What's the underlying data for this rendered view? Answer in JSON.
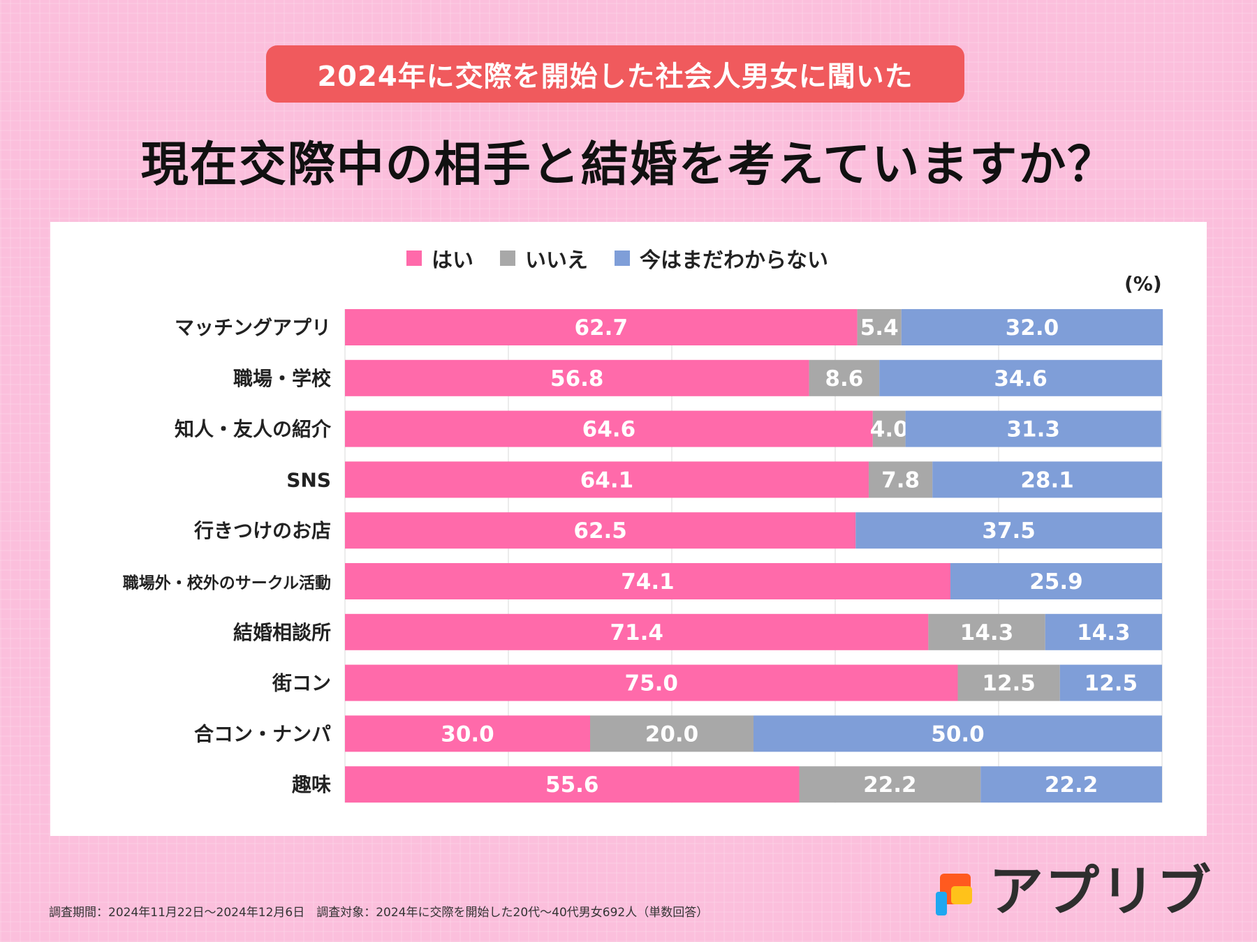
{
  "header": {
    "banner": "2024年に交際を開始した社会人男女に聞いた",
    "title": "現在交際中の相手と結婚を考えていますか？"
  },
  "legend": {
    "items": [
      {
        "label": "はい",
        "color": "#ff6aaa"
      },
      {
        "label": "いいえ",
        "color": "#a8a8a8"
      },
      {
        "label": "今はまだわからない",
        "color": "#7f9ed8"
      }
    ]
  },
  "unit_label": "(%)",
  "chart_data": {
    "type": "bar",
    "orientation": "horizontal",
    "stacked": true,
    "xlim": [
      0,
      100
    ],
    "grid": true,
    "legend_position": "top",
    "categories": [
      "マッチングアプリ",
      "職場・学校",
      "知人・友人の紹介",
      "SNS",
      "行きつけのお店",
      "職場外・校外のサークル活動",
      "結婚相談所",
      "街コン",
      "合コン・ナンパ",
      "趣味"
    ],
    "series": [
      {
        "name": "はい",
        "color": "#ff6aaa",
        "values": [
          62.7,
          56.8,
          64.6,
          64.1,
          62.5,
          74.1,
          71.4,
          75.0,
          30.0,
          55.6
        ]
      },
      {
        "name": "いいえ",
        "color": "#a8a8a8",
        "values": [
          5.4,
          8.6,
          4.0,
          7.8,
          0,
          0,
          14.3,
          12.5,
          20.0,
          22.2
        ]
      },
      {
        "name": "今はまだわからない",
        "color": "#7f9ed8",
        "values": [
          32.0,
          34.6,
          31.3,
          28.1,
          37.5,
          25.9,
          14.3,
          12.5,
          50.0,
          22.2
        ]
      }
    ]
  },
  "footer": {
    "note": "調査期間：2024年11月22日〜2024年12月6日　調査対象：2024年に交際を開始した20代〜40代男女692人（単数回答）",
    "logo_text": "アプリブ"
  }
}
